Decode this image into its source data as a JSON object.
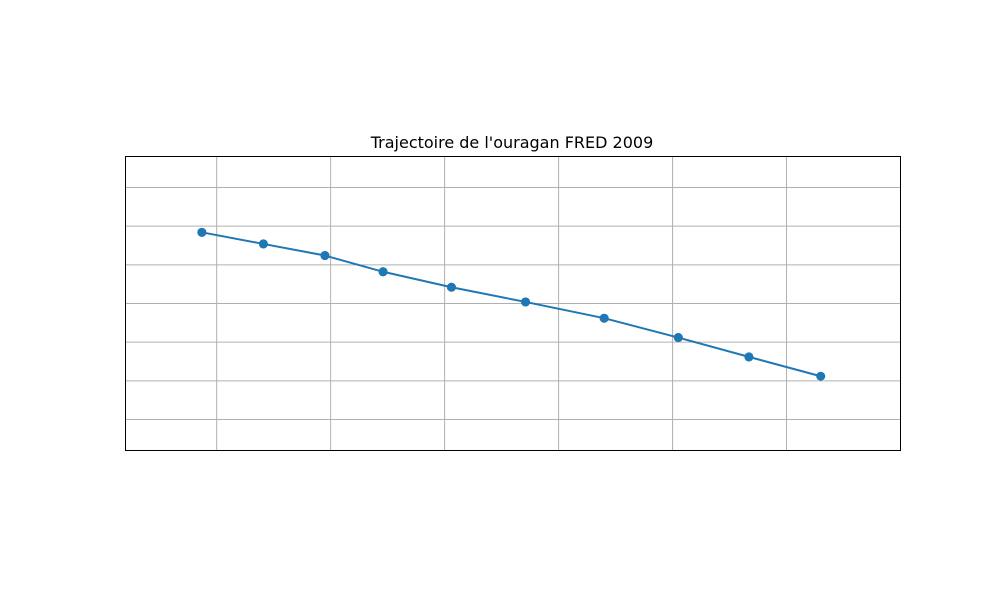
{
  "colors": {
    "series": "#1f77b4",
    "grid": "#b0b0b0",
    "frame": "#000000"
  },
  "chart_data": {
    "type": "line",
    "title": "Trajectoire de l'ouragan FRED 2009",
    "xlabel": "",
    "ylabel": "",
    "grid": true,
    "legend": false,
    "xlim": [
      -0.8,
      6.0
    ],
    "ylim": [
      -0.9,
      2.9
    ],
    "xticks": [
      0,
      1,
      2,
      3,
      4,
      5,
      6
    ],
    "yticks": [
      -0.5,
      0,
      0.5,
      1,
      1.5,
      2,
      2.5
    ],
    "xticklabels_visible": false,
    "yticklabels_visible": false,
    "series": [
      {
        "name": "",
        "marker": "o",
        "points": [
          {
            "x": -0.13,
            "y": 1.92
          },
          {
            "x": 0.41,
            "y": 1.77
          },
          {
            "x": 0.95,
            "y": 1.62
          },
          {
            "x": 1.46,
            "y": 1.41
          },
          {
            "x": 2.06,
            "y": 1.21
          },
          {
            "x": 2.71,
            "y": 1.02
          },
          {
            "x": 3.4,
            "y": 0.81
          },
          {
            "x": 4.05,
            "y": 0.56
          },
          {
            "x": 4.67,
            "y": 0.31
          },
          {
            "x": 5.3,
            "y": 0.06
          },
          {
            "x": 4.67,
            "y": 0.31
          },
          {
            "x": 4.05,
            "y": 0.56
          },
          {
            "x": 3.4,
            "y": 0.81
          },
          {
            "x": 2.71,
            "y": 1.02
          },
          {
            "x": 2.06,
            "y": 1.21
          },
          {
            "x": 1.46,
            "y": 1.41
          },
          {
            "x": 0.95,
            "y": 1.62
          },
          {
            "x": 0.41,
            "y": 1.77
          },
          {
            "x": -0.13,
            "y": 1.92
          }
        ]
      }
    ]
  }
}
